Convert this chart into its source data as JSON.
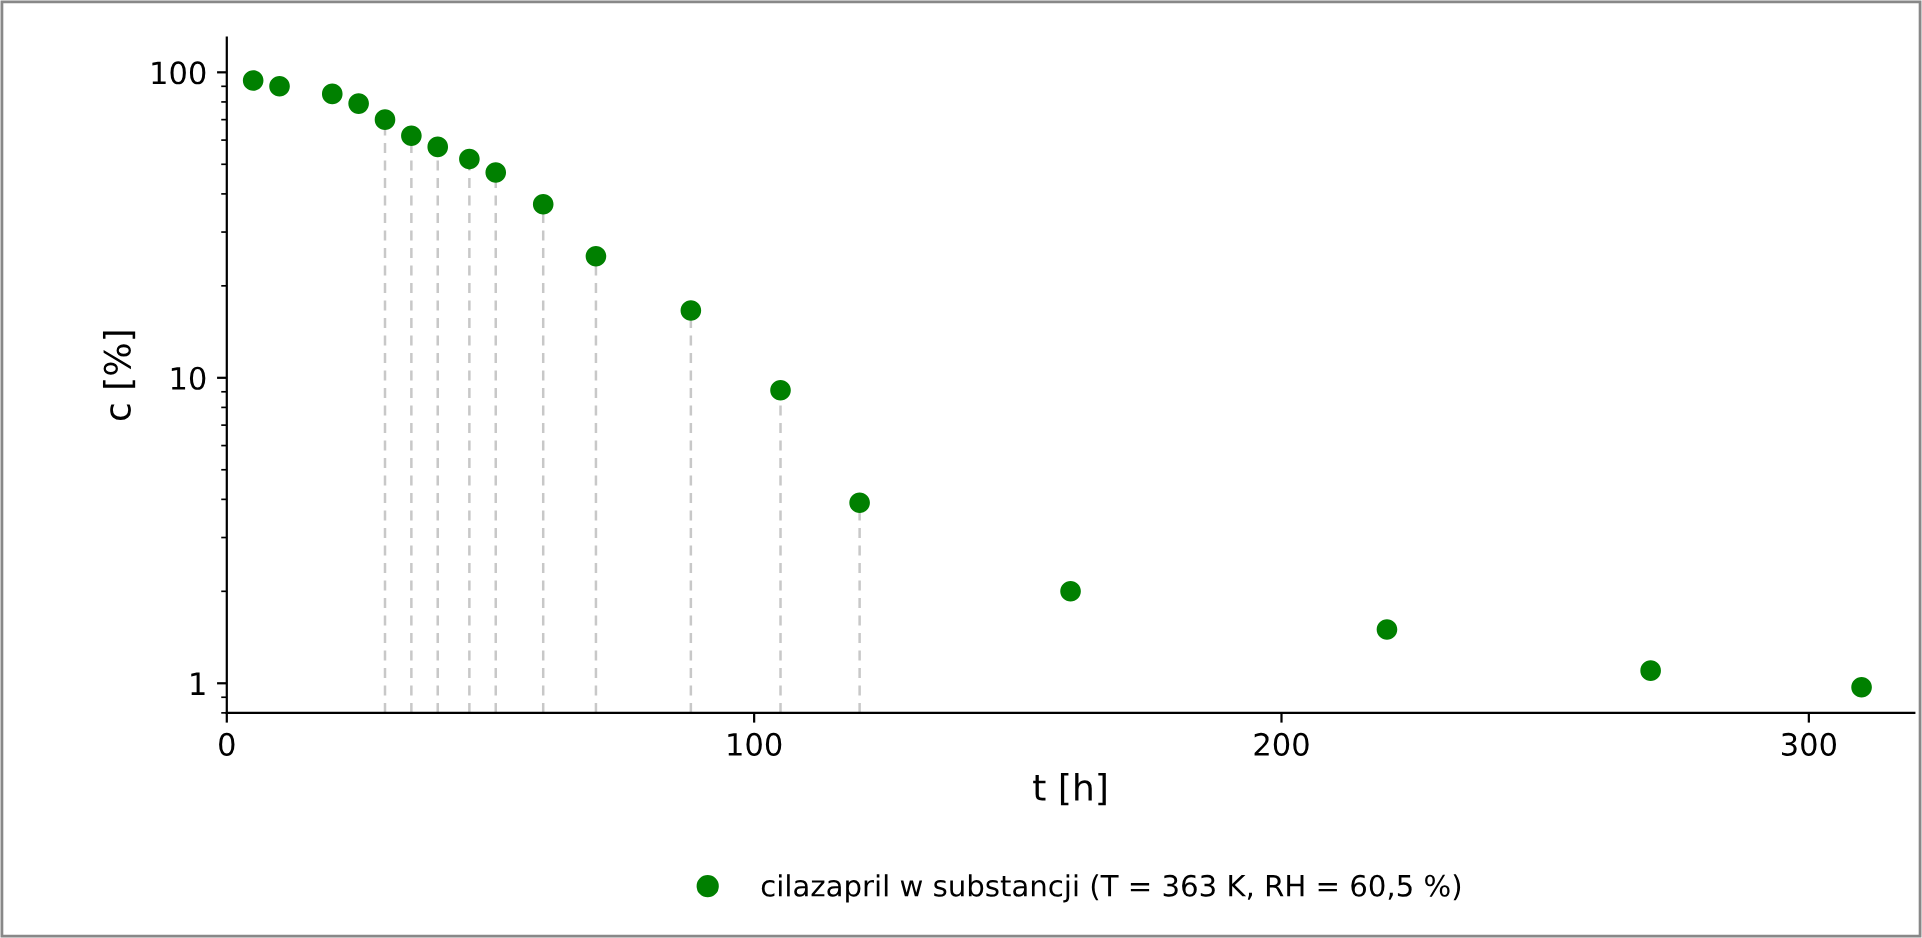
{
  "chart_data": {
    "type": "scatter",
    "xlabel": "t [h]",
    "ylabel": "c [%]",
    "x": [
      5,
      10,
      20,
      25,
      30,
      35,
      40,
      46,
      51,
      60,
      70,
      88,
      105,
      120,
      160,
      220,
      270,
      310
    ],
    "series": [
      {
        "name": "cilazapril w substancji (T = 363 K, RH = 60,5 %)",
        "color": "#008000",
        "values": [
          94,
          90,
          85,
          79,
          70,
          62,
          57,
          52,
          47,
          37,
          25,
          16.6,
          9.1,
          3.9,
          2.0,
          1.5,
          1.1,
          0.97
        ]
      }
    ],
    "log": "y",
    "xlim": [
      0,
      320
    ],
    "xticks": [
      0,
      100,
      200,
      300
    ],
    "ylim": [
      0.8,
      130
    ],
    "yticks": [
      1,
      10,
      100
    ],
    "marker": "circle",
    "grid": false,
    "legend": "bottom",
    "ref_lines": [
      {
        "axis": "x",
        "value": 30,
        "color": "#c8c8c8",
        "line_style": "dashed"
      },
      {
        "axis": "x",
        "value": 35,
        "color": "#c8c8c8",
        "line_style": "dashed"
      },
      {
        "axis": "x",
        "value": 40,
        "color": "#c8c8c8",
        "line_style": "dashed"
      },
      {
        "axis": "x",
        "value": 46,
        "color": "#c8c8c8",
        "line_style": "dashed"
      },
      {
        "axis": "x",
        "value": 51,
        "color": "#c8c8c8",
        "line_style": "dashed"
      },
      {
        "axis": "x",
        "value": 60,
        "color": "#c8c8c8",
        "line_style": "dashed"
      },
      {
        "axis": "x",
        "value": 70,
        "color": "#c8c8c8",
        "line_style": "dashed"
      },
      {
        "axis": "x",
        "value": 88,
        "color": "#c8c8c8",
        "line_style": "dashed"
      },
      {
        "axis": "x",
        "value": 105,
        "color": "#c8c8c8",
        "line_style": "dashed"
      },
      {
        "axis": "x",
        "value": 120,
        "color": "#c8c8c8",
        "line_style": "dashed"
      }
    ]
  }
}
